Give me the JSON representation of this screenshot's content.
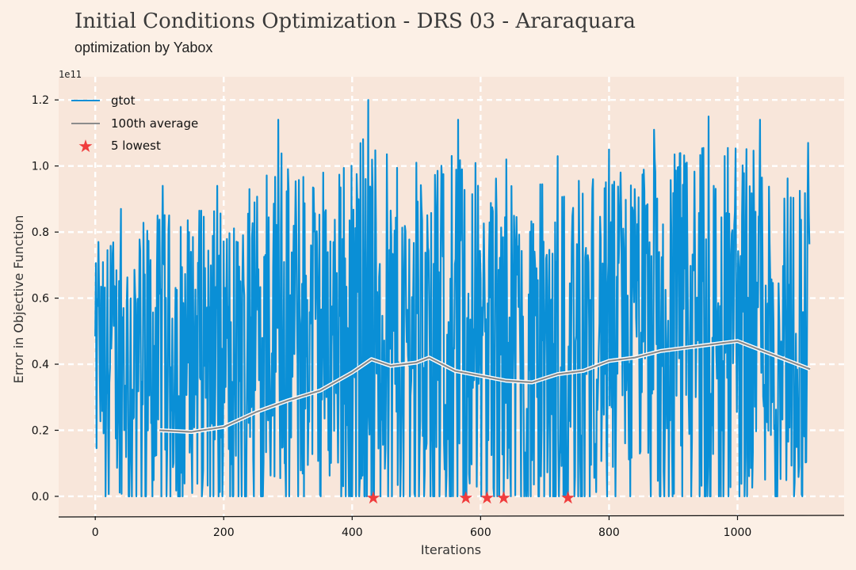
{
  "header": {
    "title": "Initial Conditions Optimization - DRS 03 - Araraquara",
    "subtitle": "optimization by Yabox"
  },
  "colors": {
    "background": "#fcf0e6",
    "plot_area": "#f8e6da",
    "grid": "#ffffff",
    "gtot": "#0a8fd6",
    "average": "#8c8c8c",
    "lowest": "#f03c3c"
  },
  "chart_data": {
    "type": "line",
    "xlabel": "Iterations",
    "ylabel": "Error in Objective Function",
    "y_exponent_label": "1e11",
    "xlim": [
      -57,
      1166
    ],
    "ylim": [
      -0.06,
      1.27
    ],
    "x_ticks": [
      0,
      200,
      400,
      600,
      800,
      1000
    ],
    "y_ticks": [
      0.0,
      0.2,
      0.4,
      0.6,
      0.8,
      1.0,
      1.2
    ],
    "x_tick_labels": [
      "0",
      "200",
      "400",
      "600",
      "800",
      "1000"
    ],
    "y_tick_labels": [
      "0.0",
      "0.2",
      "0.4",
      "0.6",
      "0.8",
      "1.0",
      "1.2"
    ],
    "grid": true,
    "legend_position": "top-left",
    "n_iterations": 1113,
    "series": [
      {
        "name": "gtot",
        "kind": "line",
        "approx_peaks": [
          {
            "x": 5,
            "y": 0.77
          },
          {
            "x": 40,
            "y": 0.87
          },
          {
            "x": 105,
            "y": 0.94
          },
          {
            "x": 190,
            "y": 0.94
          },
          {
            "x": 240,
            "y": 0.93
          },
          {
            "x": 285,
            "y": 1.14
          },
          {
            "x": 355,
            "y": 0.98
          },
          {
            "x": 425,
            "y": 1.2
          },
          {
            "x": 500,
            "y": 1.01
          },
          {
            "x": 565,
            "y": 1.14
          },
          {
            "x": 640,
            "y": 1.02
          },
          {
            "x": 720,
            "y": 1.03
          },
          {
            "x": 800,
            "y": 1.05
          },
          {
            "x": 870,
            "y": 1.11
          },
          {
            "x": 955,
            "y": 1.15
          },
          {
            "x": 1035,
            "y": 1.14
          },
          {
            "x": 1110,
            "y": 1.07
          }
        ],
        "min": 0.0,
        "max": 1.2
      },
      {
        "name": "100th average",
        "kind": "line",
        "x": [
          100,
          150,
          200,
          250,
          300,
          350,
          400,
          430,
          460,
          500,
          520,
          560,
          600,
          640,
          680,
          720,
          760,
          800,
          840,
          880,
          920,
          960,
          1000,
          1040,
          1080,
          1113
        ],
        "y": [
          0.2,
          0.195,
          0.21,
          0.255,
          0.29,
          0.32,
          0.375,
          0.415,
          0.395,
          0.405,
          0.42,
          0.38,
          0.365,
          0.35,
          0.345,
          0.37,
          0.38,
          0.41,
          0.42,
          0.44,
          0.45,
          0.46,
          0.47,
          0.44,
          0.41,
          0.385
        ]
      },
      {
        "name": "5 lowest",
        "kind": "scatter",
        "marker": "star",
        "x": [
          433,
          577,
          610,
          636,
          736
        ],
        "y": [
          0.0,
          0.0,
          0.0,
          0.0,
          0.0
        ]
      }
    ]
  }
}
